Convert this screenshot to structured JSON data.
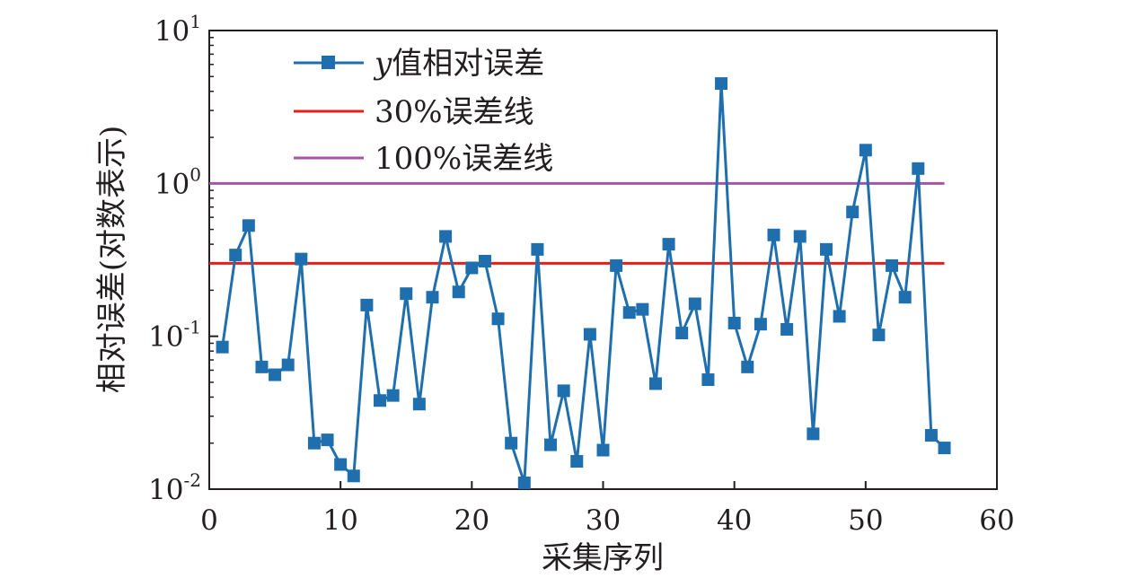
{
  "chart_data": {
    "type": "line",
    "xlabel": "采集序列",
    "ylabel": "相对误差(对数表示)",
    "xlim": [
      0,
      60
    ],
    "ylim": [
      0.01,
      10
    ],
    "yscale": "log",
    "xticks": [
      "0",
      "10",
      "20",
      "30",
      "40",
      "50",
      "60"
    ],
    "yticks": [
      {
        "base": "10",
        "exp": "-2"
      },
      {
        "base": "10",
        "exp": "-1"
      },
      {
        "base": "10",
        "exp": "0"
      },
      {
        "base": "10",
        "exp": "1"
      }
    ],
    "grid": false,
    "legend_position": "top-left",
    "series": [
      {
        "name": "y值相对误差",
        "legend_italic_prefix": "y",
        "legend_rest": "值相对误差",
        "color": "#1f6fae",
        "marker": "square",
        "x": [
          1,
          2,
          3,
          4,
          5,
          6,
          7,
          8,
          9,
          10,
          11,
          12,
          13,
          14,
          15,
          16,
          17,
          18,
          19,
          20,
          21,
          22,
          23,
          24,
          25,
          26,
          27,
          28,
          29,
          30,
          31,
          32,
          33,
          34,
          35,
          36,
          37,
          38,
          39,
          40,
          41,
          42,
          43,
          44,
          45,
          46,
          47,
          48,
          49,
          50,
          51,
          52,
          53,
          54,
          55,
          56
        ],
        "y": [
          0.085,
          0.34,
          0.53,
          0.063,
          0.056,
          0.065,
          0.32,
          0.02,
          0.021,
          0.0145,
          0.0122,
          0.16,
          0.038,
          0.041,
          0.19,
          0.036,
          0.18,
          0.45,
          0.195,
          0.28,
          0.31,
          0.13,
          0.02,
          0.011,
          0.37,
          0.0195,
          0.044,
          0.0152,
          0.103,
          0.018,
          0.29,
          0.143,
          0.15,
          0.049,
          0.4,
          0.105,
          0.163,
          0.052,
          4.5,
          0.122,
          0.063,
          0.12,
          0.46,
          0.111,
          0.45,
          0.023,
          0.37,
          0.135,
          0.65,
          1.65,
          0.102,
          0.29,
          0.18,
          1.25,
          0.0225,
          0.0186
        ]
      },
      {
        "name": "30%误差线",
        "color": "#e3211c",
        "constant": 0.3,
        "x_range": [
          0,
          56
        ]
      },
      {
        "name": "100%误差线",
        "color": "#a555a5",
        "constant": 1.0,
        "x_range": [
          0,
          56
        ]
      }
    ]
  }
}
